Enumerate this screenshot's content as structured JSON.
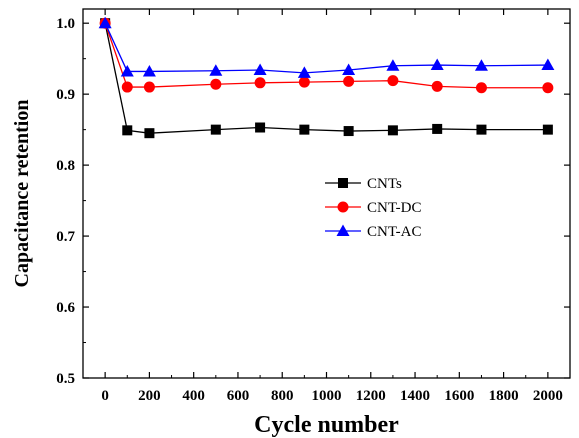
{
  "chart_data": {
    "type": "line",
    "title": "",
    "xlabel": "Cycle number",
    "ylabel": "Capacitance retention",
    "xlim": [
      -100,
      2100
    ],
    "ylim": [
      0.5,
      1.02
    ],
    "x_ticks": [
      0,
      200,
      400,
      600,
      800,
      1000,
      1200,
      1400,
      1600,
      1800,
      2000
    ],
    "x_tick_labels": [
      "0",
      "200",
      "400",
      "600",
      "800",
      "1000",
      "1200",
      "1400",
      "1600",
      "1800",
      "2000"
    ],
    "y_ticks": [
      0.5,
      0.6,
      0.7,
      0.8,
      0.9,
      1.0
    ],
    "y_tick_labels": [
      "0.5",
      "0.6",
      "0.7",
      "0.8",
      "0.9",
      "1.0"
    ],
    "grid": false,
    "legend_position": "center-right",
    "x": [
      0,
      100,
      200,
      500,
      700,
      900,
      1100,
      1300,
      1500,
      1700,
      2000
    ],
    "series": [
      {
        "name": "CNTs",
        "color": "#000000",
        "marker": "square",
        "values": [
          1.0,
          0.849,
          0.845,
          0.85,
          0.853,
          0.85,
          0.848,
          0.849,
          0.851,
          0.85,
          0.85
        ]
      },
      {
        "name": "CNT-DC",
        "color": "#ff0000",
        "marker": "circle",
        "values": [
          1.0,
          0.91,
          0.91,
          0.914,
          0.916,
          0.917,
          0.918,
          0.919,
          0.911,
          0.909,
          0.909
        ]
      },
      {
        "name": "CNT-AC",
        "color": "#0000ff",
        "marker": "triangle",
        "values": [
          1.0,
          0.932,
          0.932,
          0.933,
          0.934,
          0.93,
          0.934,
          0.94,
          0.941,
          0.94,
          0.941
        ]
      }
    ]
  }
}
